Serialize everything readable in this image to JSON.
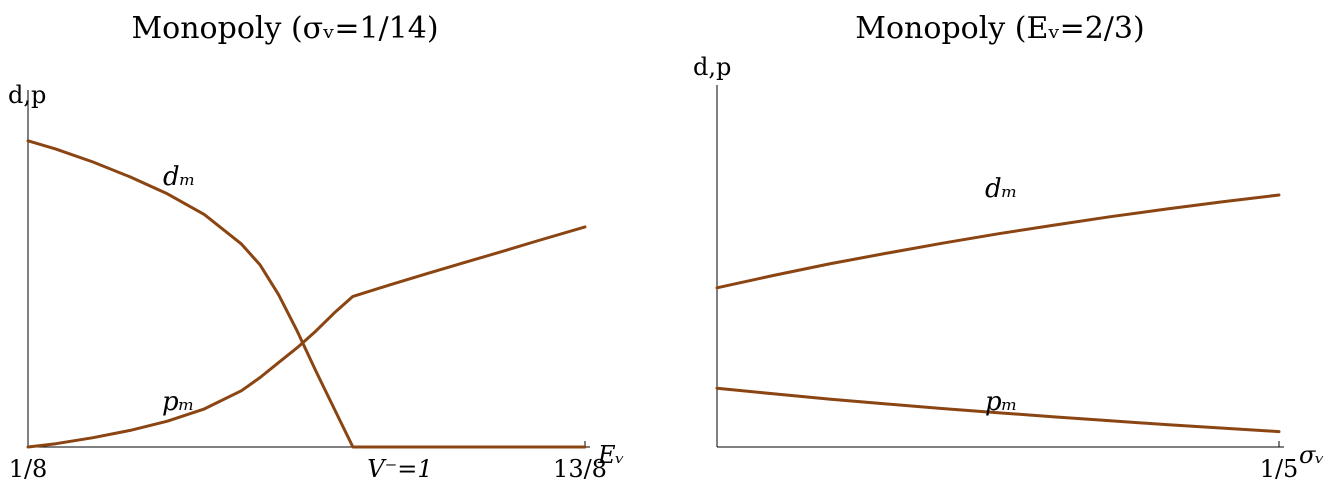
{
  "chart_data": [
    {
      "type": "line",
      "title": "Monopoly (σᵥ=1/14)",
      "ylabel": "d,p",
      "xlabel": "Eᵥ",
      "xlim": [
        0.125,
        1.625
      ],
      "ylim": [
        0,
        1
      ],
      "x_ticks": [
        {
          "value": 0.125,
          "label": "1/8"
        },
        {
          "value": 1.0,
          "label": "V⁻=1"
        },
        {
          "value": 1.625,
          "label": "13/8"
        }
      ],
      "series": [
        {
          "name": "dₘ",
          "x": [
            0.125,
            0.2,
            0.3,
            0.4,
            0.5,
            0.6,
            0.7,
            0.75,
            0.8,
            0.85,
            0.9,
            0.95,
            1.0,
            1.1,
            1.2,
            1.3,
            1.4,
            1.5,
            1.625
          ],
          "y": [
            0.925,
            0.9,
            0.861,
            0.816,
            0.765,
            0.702,
            0.613,
            0.55,
            0.46,
            0.35,
            0.23,
            0.115,
            0.0,
            0.0,
            0.0,
            0.0,
            0.0,
            0.0,
            0.0
          ]
        },
        {
          "name": "pₘ",
          "x": [
            0.125,
            0.2,
            0.3,
            0.4,
            0.5,
            0.6,
            0.7,
            0.75,
            0.8,
            0.85,
            0.9,
            0.95,
            1.0,
            1.1,
            1.2,
            1.3,
            1.4,
            1.5,
            1.625
          ],
          "y": [
            0.0,
            0.01,
            0.028,
            0.05,
            0.078,
            0.115,
            0.17,
            0.21,
            0.255,
            0.3,
            0.35,
            0.405,
            0.455,
            0.49,
            0.524,
            0.557,
            0.59,
            0.624,
            0.665
          ]
        }
      ]
    },
    {
      "type": "line",
      "title": "Monopoly (Eᵥ=2/3)",
      "ylabel": "d,p",
      "xlabel": "σᵥ",
      "xlim": [
        0,
        0.2
      ],
      "ylim": [
        0,
        1
      ],
      "x_ticks": [
        {
          "value": 0.2,
          "label": "1/5"
        }
      ],
      "series": [
        {
          "name": "dₘ",
          "x": [
            0,
            0.02,
            0.04,
            0.06,
            0.08,
            0.1,
            0.12,
            0.14,
            0.16,
            0.18,
            0.2
          ],
          "y": [
            0.455,
            0.49,
            0.523,
            0.553,
            0.582,
            0.609,
            0.634,
            0.658,
            0.68,
            0.701,
            0.72
          ]
        },
        {
          "name": "pₘ",
          "x": [
            0,
            0.02,
            0.04,
            0.06,
            0.08,
            0.1,
            0.12,
            0.14,
            0.16,
            0.18,
            0.2
          ],
          "y": [
            0.168,
            0.152,
            0.137,
            0.123,
            0.11,
            0.098,
            0.086,
            0.075,
            0.064,
            0.054,
            0.044
          ]
        }
      ]
    }
  ]
}
